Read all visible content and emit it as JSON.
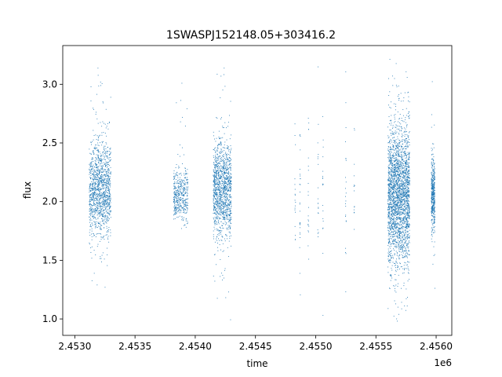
{
  "chart_data": {
    "type": "scatter",
    "title": "1SWASPJ152148.05+303416.2",
    "xlabel": "time",
    "ylabel": "flux",
    "x_offset_label": "1e6",
    "xlim": [
      2452900,
      2456130
    ],
    "ylim": [
      0.86,
      3.33
    ],
    "x_ticks": [
      2453000,
      2453500,
      2454000,
      2454500,
      2455000,
      2455500,
      2456000
    ],
    "x_tick_labels": [
      "2.4530",
      "2.4535",
      "2.4540",
      "2.4545",
      "2.4550",
      "2.4555",
      "2.4560"
    ],
    "y_ticks": [
      1.0,
      1.5,
      2.0,
      2.5,
      3.0
    ],
    "y_tick_labels": [
      "1.0",
      "1.5",
      "2.0",
      "2.5",
      "3.0"
    ],
    "grid": false,
    "legend": "none",
    "point_color": "#1f77b4",
    "clusters": [
      {
        "x_range": [
          2453120,
          2453300
        ],
        "y_center": 2.1,
        "y_spread": 0.2,
        "y_range": [
          1.27,
          3.15
        ],
        "density": "high"
      },
      {
        "x_range": [
          2453820,
          2453940
        ],
        "y_center": 2.05,
        "y_spread": 0.12,
        "y_range": [
          1.7,
          3.04
        ],
        "density": "medium"
      },
      {
        "x_range": [
          2454150,
          2454300
        ],
        "y_center": 2.1,
        "y_spread": 0.2,
        "y_range": [
          0.98,
          3.16
        ],
        "density": "high"
      },
      {
        "x_range": [
          2454800,
          2455350
        ],
        "y_center": 2.05,
        "y_spread": 0.35,
        "y_range": [
          1.03,
          3.18
        ],
        "density": "sparse"
      },
      {
        "x_range": [
          2455600,
          2455780
        ],
        "y_center": 2.05,
        "y_spread": 0.3,
        "y_range": [
          0.98,
          3.22
        ],
        "density": "very-high"
      },
      {
        "x_range": [
          2455960,
          2455990
        ],
        "y_center": 2.05,
        "y_spread": 0.15,
        "y_range": [
          1.22,
          3.08
        ],
        "density": "medium"
      }
    ]
  }
}
